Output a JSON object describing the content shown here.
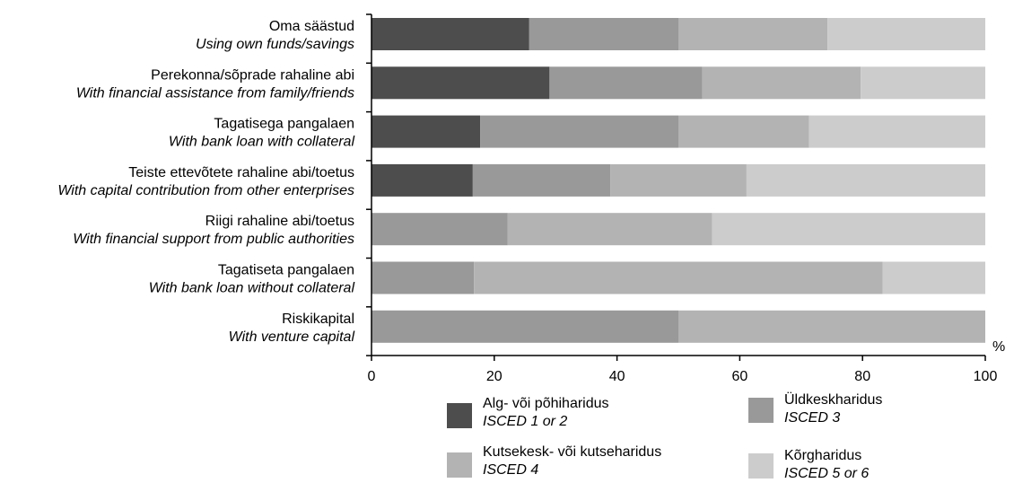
{
  "chart_data": {
    "type": "bar",
    "orientation": "horizontal",
    "stacked": true,
    "unit_label": "%",
    "categories": [
      {
        "et": "Oma säästud",
        "en": "Using own funds/savings"
      },
      {
        "et": "Perekonna/sõprade rahaline abi",
        "en": "With financial assistance from family/friends"
      },
      {
        "et": "Tagatisega pangalaen",
        "en": "With bank loan with collateral"
      },
      {
        "et": "Teiste ettevõtete rahaline abi/toetus",
        "en": "With capital contribution from other enterprises"
      },
      {
        "et": "Riigi rahaline abi/toetus",
        "en": "With financial support from public authorities"
      },
      {
        "et": "Tagatiseta pangalaen",
        "en": "With bank loan without collateral"
      },
      {
        "et": "Riskikapital",
        "en": "With venture capital"
      }
    ],
    "series": [
      {
        "name": "Alg- või põhiharidus",
        "name_en": "ISCED 1 or 2",
        "color": "#4d4d4d",
        "values": [
          25.7,
          29.0,
          17.7,
          16.5,
          0,
          0,
          0
        ]
      },
      {
        "name": "Üldkeskharidus",
        "name_en": "ISCED 3",
        "color": "#999999",
        "values": [
          24.3,
          24.9,
          32.3,
          22.4,
          22.2,
          16.7,
          50.0
        ]
      },
      {
        "name": "Kutsekesk- või kutseharidus",
        "name_en": "ISCED 4",
        "color": "#b3b3b3",
        "values": [
          24.3,
          25.8,
          21.3,
          22.2,
          33.3,
          66.6,
          50.0
        ]
      },
      {
        "name": "Kõrgharidus",
        "name_en": "ISCED 5 or 6",
        "color": "#cccccc",
        "values": [
          25.7,
          20.3,
          28.7,
          38.9,
          44.5,
          16.7,
          0
        ]
      }
    ],
    "xlim": [
      0,
      100
    ],
    "xticks": [
      0,
      20,
      40,
      60,
      80,
      100
    ],
    "grid": false,
    "legend_position": "bottom"
  }
}
